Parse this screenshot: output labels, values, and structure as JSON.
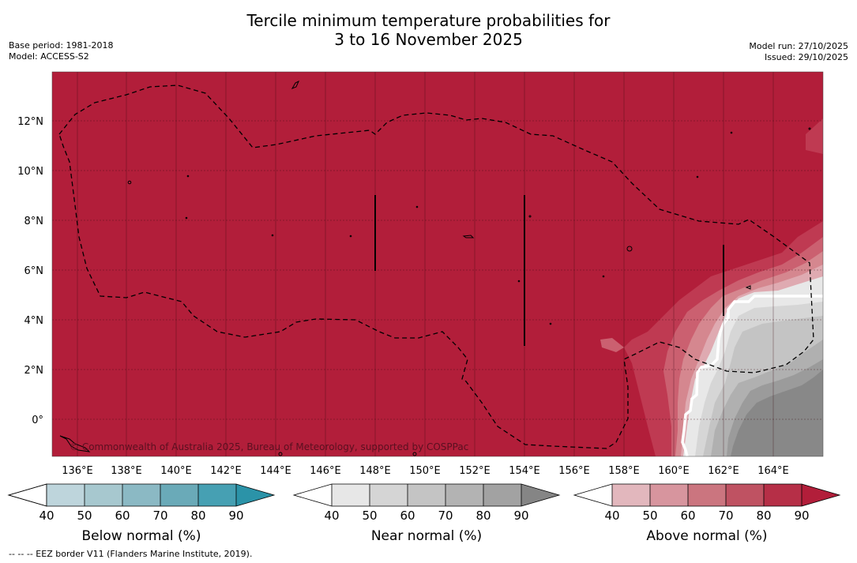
{
  "title": {
    "line1": "Tercile minimum temperature probabilities for",
    "line2": "3 to 16 November 2025"
  },
  "meta_left": {
    "base_period": "Base period: 1981-2018",
    "model": "Model: ACCESS-S2"
  },
  "meta_right": {
    "model_run": "Model run: 27/10/2025",
    "issued": "Issued: 29/10/2025"
  },
  "copyright": "© Commonwealth of Australia 2025, Bureau of Meteorology, supported by COSPPac",
  "footer": "--  --  -- EEZ border V11 (Flanders Marine Institute, 2019).",
  "map": {
    "lon_ticks": [
      "136°E",
      "138°E",
      "140°E",
      "142°E",
      "144°E",
      "146°E",
      "148°E",
      "150°E",
      "152°E",
      "154°E",
      "156°E",
      "158°E",
      "160°E",
      "162°E",
      "164°E"
    ],
    "lat_ticks": [
      "12°N",
      "10°N",
      "8°N",
      "6°N",
      "4°N",
      "2°N",
      "0°"
    ],
    "background_color": "#b21e3a",
    "lon_range": [
      135,
      166
    ],
    "lat_range": [
      -1.5,
      14
    ]
  },
  "colorbars": [
    {
      "title": "Below normal (%)",
      "ticks": [
        "40",
        "50",
        "60",
        "70",
        "80",
        "90"
      ],
      "colors": [
        "#ffffff",
        "#bed5dc",
        "#a7c8cf",
        "#8bb9c4",
        "#6aaab8",
        "#46a0b3",
        "#2b93a8"
      ]
    },
    {
      "title": "Near normal (%)",
      "ticks": [
        "40",
        "50",
        "60",
        "70",
        "80",
        "90"
      ],
      "colors": [
        "#ffffff",
        "#e7e7e7",
        "#d5d5d5",
        "#c4c4c4",
        "#b3b3b3",
        "#a2a2a2",
        "#858585"
      ]
    },
    {
      "title": "Above normal (%)",
      "ticks": [
        "40",
        "50",
        "60",
        "70",
        "80",
        "90"
      ],
      "colors": [
        "#ffffff",
        "#e2b7bd",
        "#d7959e",
        "#cb757f",
        "#bf5262",
        "#b62f47",
        "#b21e3a"
      ]
    }
  ]
}
